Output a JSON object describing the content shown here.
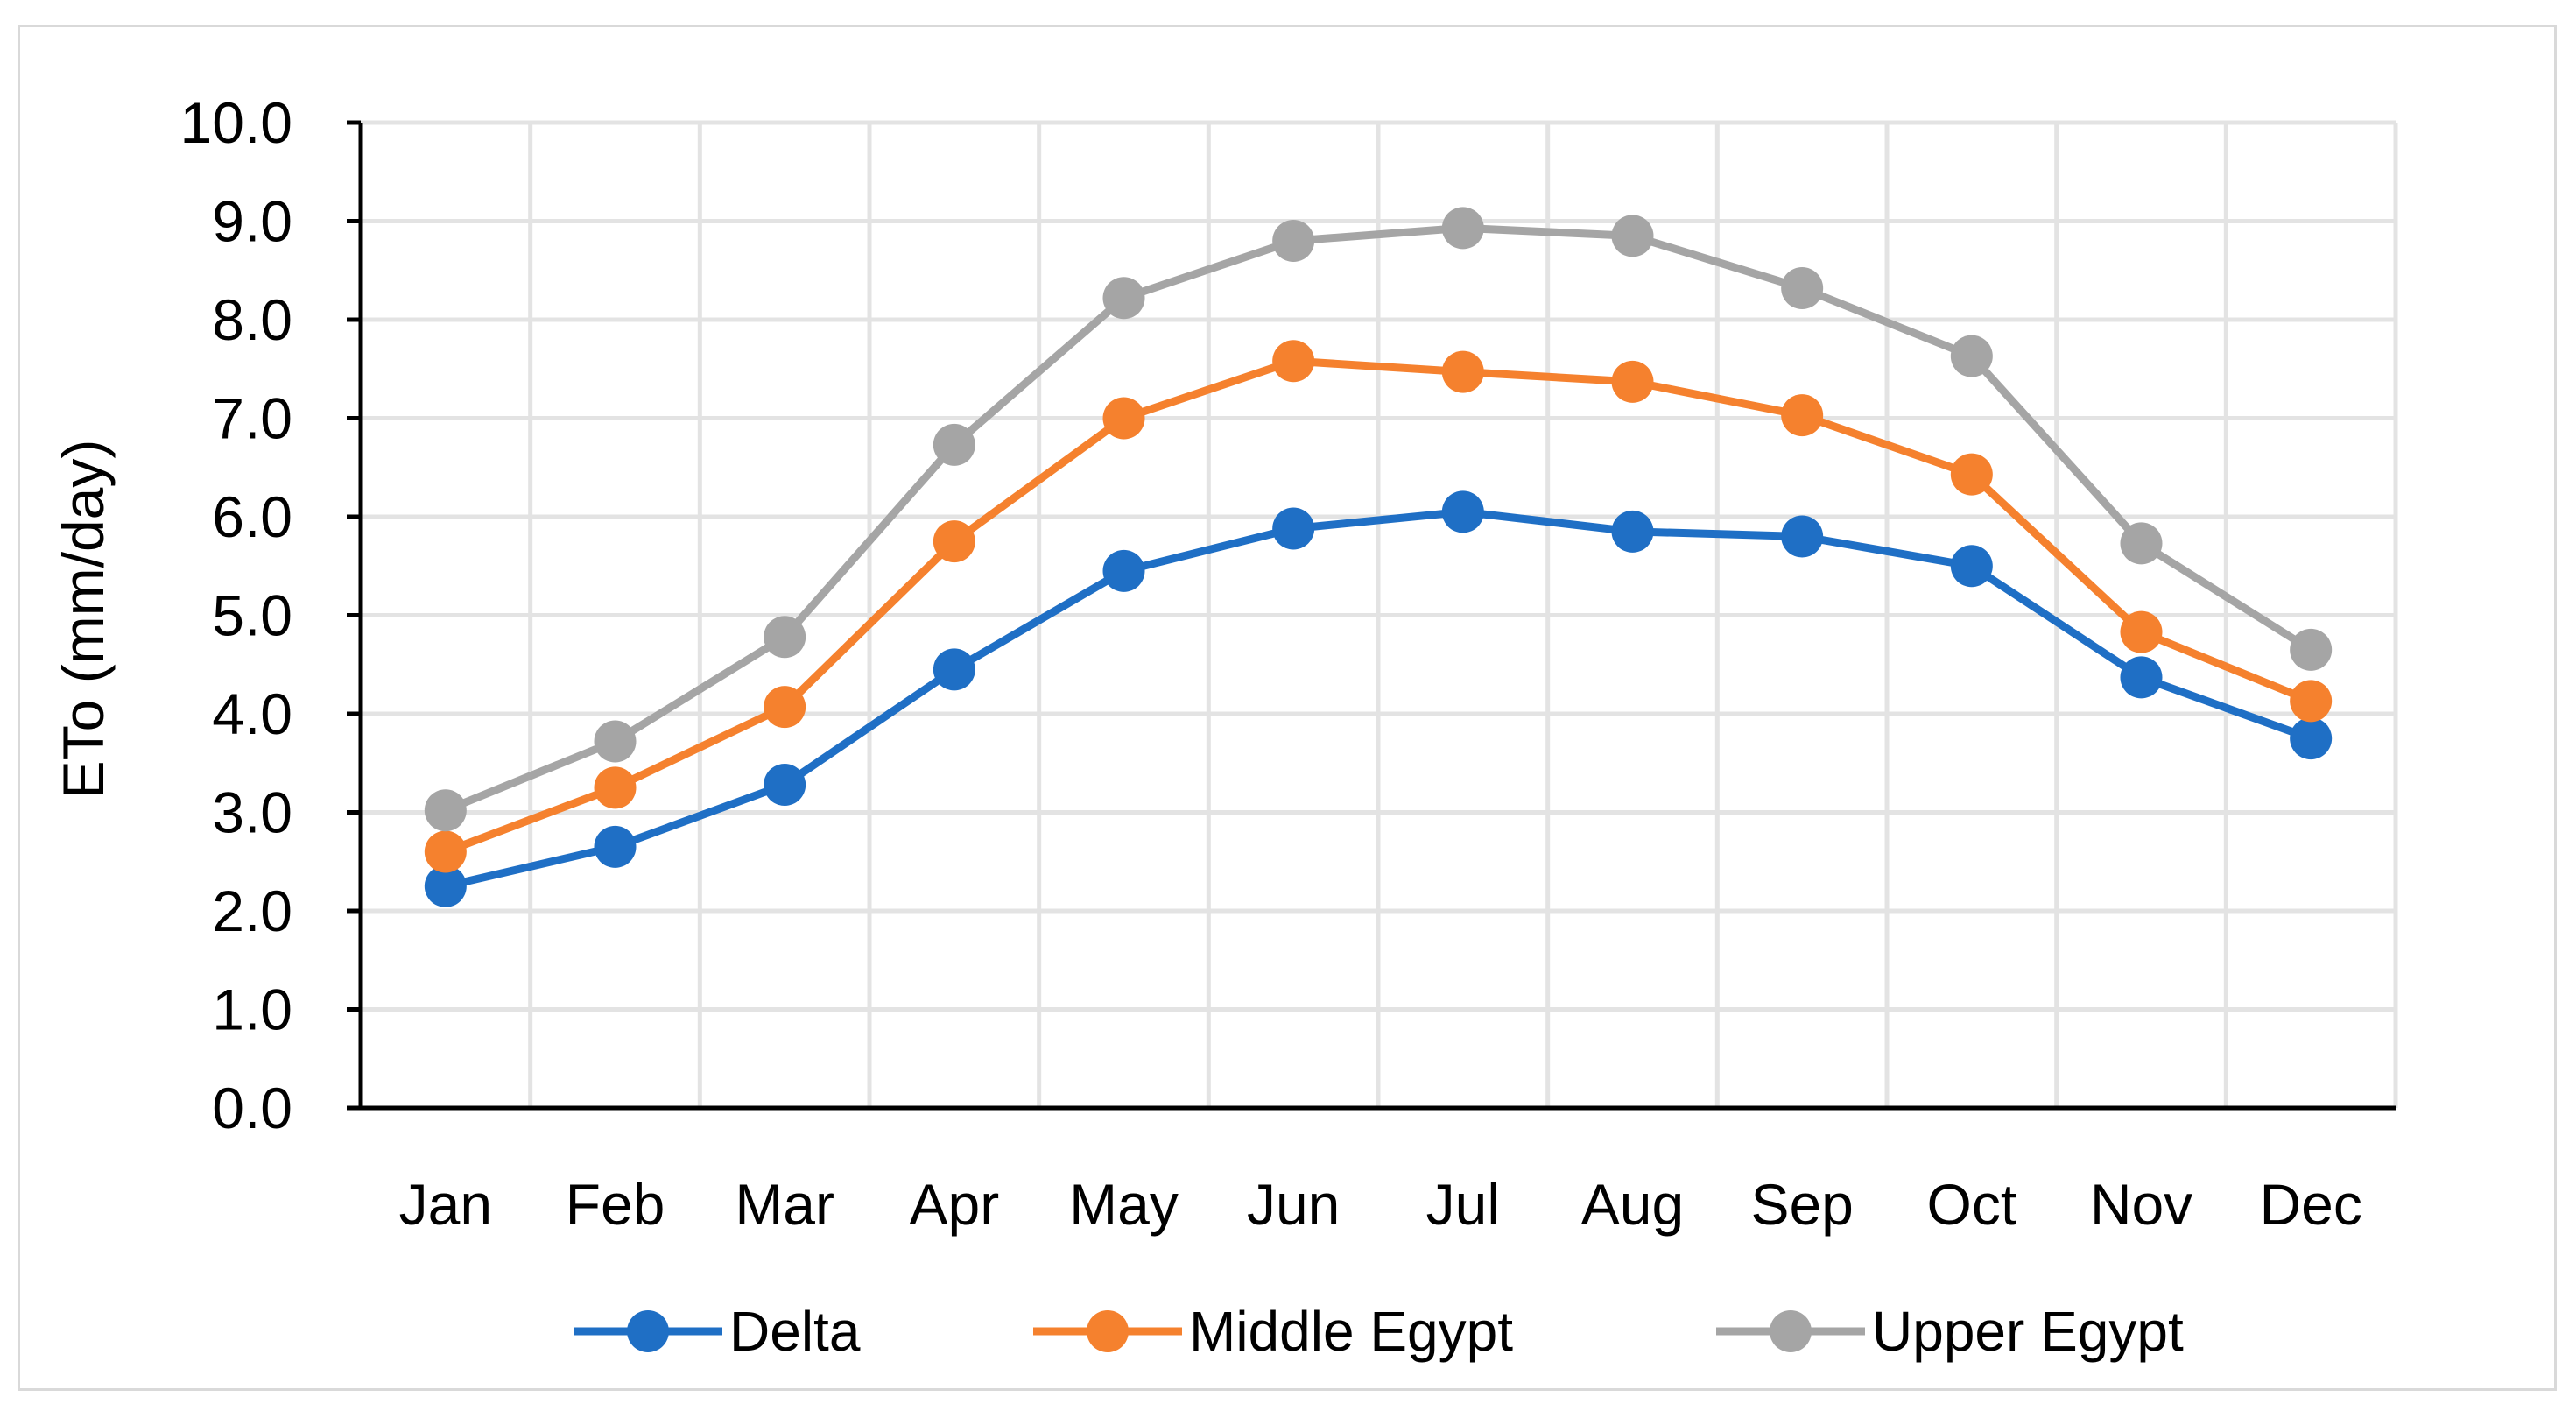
{
  "chart_data": {
    "type": "line",
    "title": "",
    "xlabel": "",
    "ylabel": "ETo (mm/day)",
    "ylim": [
      0,
      10
    ],
    "ytick_step": 1,
    "ytick_decimals": 1,
    "grid": true,
    "legend_position": "bottom",
    "categories": [
      "Jan",
      "Feb",
      "Mar",
      "Apr",
      "May",
      "Jun",
      "Jul",
      "Aug",
      "Sep",
      "Oct",
      "Nov",
      "Dec"
    ],
    "series": [
      {
        "name": "Delta",
        "color": "#1f6fc5",
        "values": [
          2.25,
          2.65,
          3.28,
          4.45,
          5.45,
          5.88,
          6.05,
          5.85,
          5.8,
          5.5,
          4.37,
          3.75
        ]
      },
      {
        "name": "Middle Egypt",
        "color": "#f5812e",
        "values": [
          2.6,
          3.25,
          4.07,
          5.75,
          7.0,
          7.58,
          7.47,
          7.37,
          7.03,
          6.43,
          4.83,
          4.13
        ]
      },
      {
        "name": "Upper Egypt",
        "color": "#a5a5a5",
        "values": [
          3.02,
          3.72,
          4.78,
          6.73,
          8.22,
          8.8,
          8.93,
          8.85,
          8.32,
          7.63,
          5.73,
          4.65
        ]
      }
    ]
  }
}
